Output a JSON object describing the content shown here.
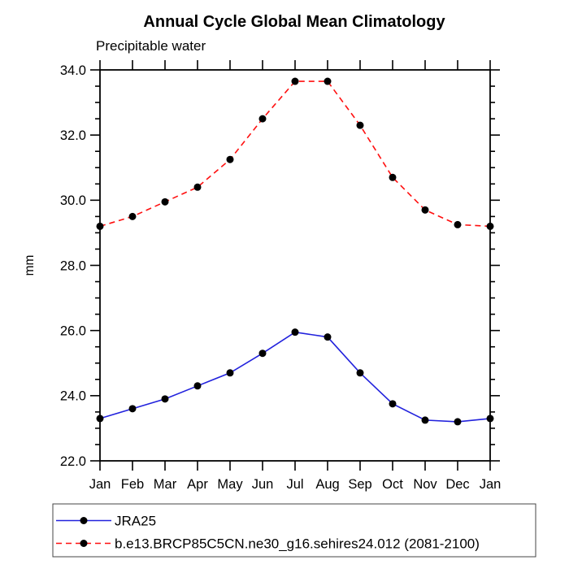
{
  "chart_data": {
    "type": "line",
    "title": "Annual Cycle Global Mean Climatology",
    "subtitle": "Precipitable water",
    "ylabel": "mm",
    "xlabel": "",
    "categories": [
      "Jan",
      "Feb",
      "Mar",
      "Apr",
      "May",
      "Jun",
      "Jul",
      "Aug",
      "Sep",
      "Oct",
      "Nov",
      "Dec",
      "Jan"
    ],
    "ylim": [
      22.0,
      34.0
    ],
    "y_major_tick_interval": 2.0,
    "y_minor_tick_interval": 0.5,
    "y_tick_labels": [
      "22.0",
      "24.0",
      "26.0",
      "28.0",
      "30.0",
      "32.0",
      "34.0"
    ],
    "grid": false,
    "legend_position": "bottom",
    "marker": "filled-black-dot",
    "marker_color": "#000000",
    "series": [
      {
        "name": "JRA25",
        "color": "#2222dd",
        "style": "solid",
        "values": [
          23.3,
          23.6,
          23.9,
          24.3,
          24.7,
          25.3,
          25.95,
          25.8,
          24.7,
          23.75,
          23.25,
          23.2,
          23.3
        ]
      },
      {
        "name": "b.e13.BRCP85C5CN.ne30_g16.sehires24.012 (2081-2100)",
        "color": "#ff0f0f",
        "style": "dashed",
        "values": [
          29.2,
          29.5,
          29.95,
          30.4,
          31.25,
          32.5,
          33.65,
          33.65,
          32.3,
          30.7,
          29.7,
          29.25,
          29.2
        ]
      }
    ]
  }
}
